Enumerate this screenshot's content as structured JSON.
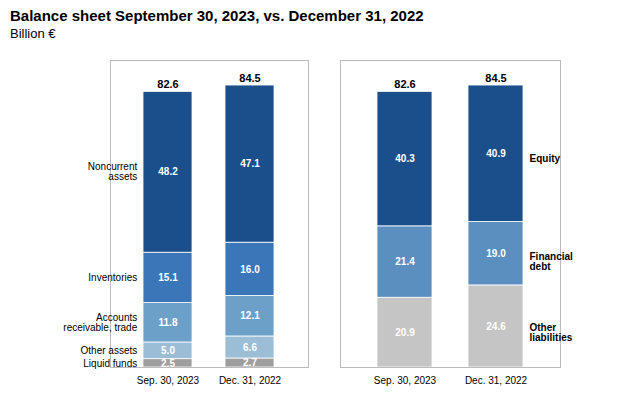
{
  "chart_data": [
    {
      "type": "bar",
      "title": "Balance sheet September 30, 2023, vs. December 31, 2022",
      "subtitle": "Billion €",
      "stacked": true,
      "data_labels": true,
      "tick_labels": "x",
      "grid": false,
      "categories": [
        "Sep. 30, 2023",
        "Dec. 31, 2022"
      ],
      "series": [
        {
          "name": "Liquid funds",
          "color": "#9e9e9e",
          "values": [
            2.5,
            2.7
          ],
          "value_labels": [
            "2.5",
            "2.7"
          ]
        },
        {
          "name": "Other assets",
          "color": "#9bbdd6",
          "values": [
            5.0,
            6.6
          ],
          "value_labels": [
            "5.0",
            "6.6"
          ]
        },
        {
          "name": "Accounts\nreceivable, trade",
          "color": "#6da0c8",
          "values": [
            11.8,
            12.1
          ],
          "value_labels": [
            "11.8",
            "12.1"
          ]
        },
        {
          "name": "Inventories",
          "color": "#3a76b8",
          "values": [
            15.1,
            16.0
          ],
          "value_labels": [
            "15.1",
            "16.0"
          ]
        },
        {
          "name": "Noncurrent\nassets",
          "color": "#1a4f8c",
          "values": [
            48.2,
            47.1
          ],
          "value_labels": [
            "48.2",
            "47.1"
          ]
        }
      ],
      "totals": [
        82.6,
        84.5
      ],
      "ylim": [
        0,
        92
      ]
    },
    {
      "type": "bar",
      "stacked": true,
      "data_labels": true,
      "tick_labels": "x",
      "grid": false,
      "categories": [
        "Sep. 30, 2023",
        "Dec. 31, 2022"
      ],
      "series": [
        {
          "name": "Other\nliabilities",
          "color": "#c5c5c5",
          "values": [
            20.9,
            24.6
          ],
          "value_labels": [
            "20.9",
            "24.6"
          ]
        },
        {
          "name": "Financial\ndebt",
          "color": "#5b8fbf",
          "values": [
            21.4,
            19.0
          ],
          "value_labels": [
            "21.4",
            "19.0"
          ]
        },
        {
          "name": "Equity",
          "color": "#1a4f8c",
          "values": [
            40.3,
            40.9
          ],
          "value_labels": [
            "40.3",
            "40.9"
          ]
        }
      ],
      "totals": [
        82.6,
        84.5
      ],
      "ylim": [
        0,
        92
      ]
    }
  ]
}
